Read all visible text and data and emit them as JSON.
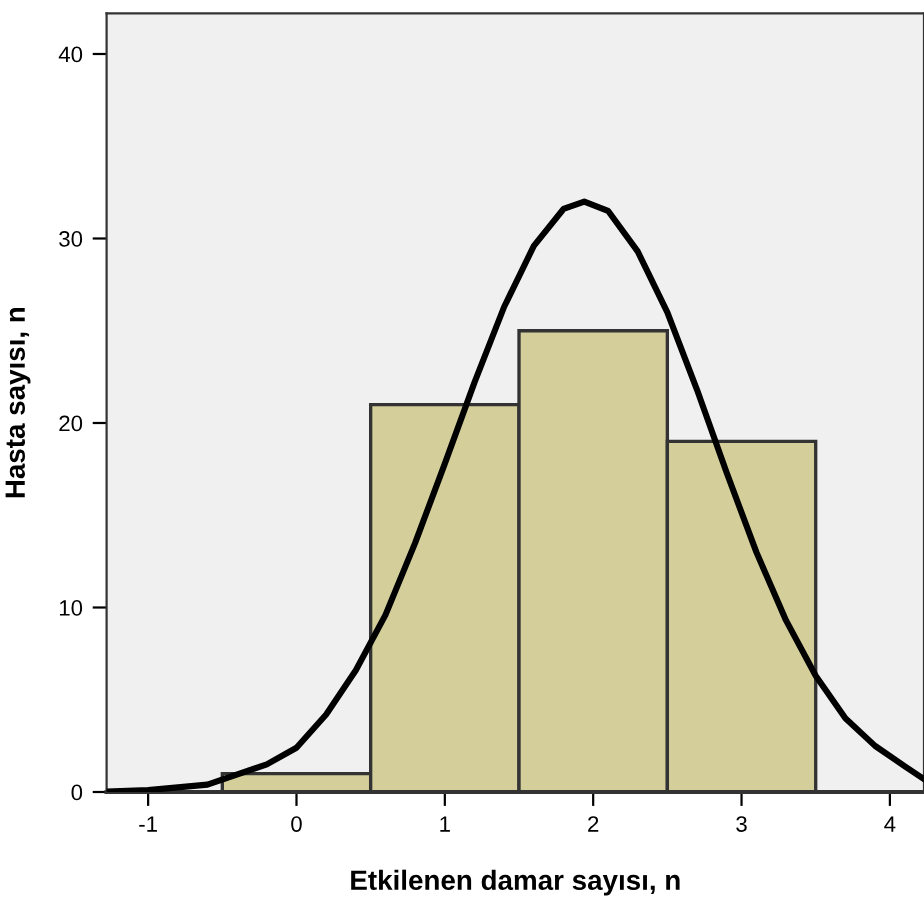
{
  "chart_data": {
    "type": "histogram",
    "xlabel": "Etkilenen damar sayısı, n",
    "ylabel": "Hasta sayısı, n",
    "bins": [
      -0.5,
      0.5,
      1.5,
      2.5,
      3.5
    ],
    "values": [
      1,
      21,
      25,
      19
    ],
    "color": "#d3ce9a",
    "series": [
      {
        "type": "line",
        "color": "#000000",
        "x": [
          -1.28,
          -1.0,
          -0.6,
          -0.2,
          0,
          0.2,
          0.4,
          0.6,
          0.8,
          1.0,
          1.2,
          1.4,
          1.6,
          1.8,
          1.94,
          2.1,
          2.3,
          2.5,
          2.7,
          2.9,
          3.1,
          3.3,
          3.5,
          3.7,
          3.9,
          4.1,
          4.23
        ],
        "values": [
          0.03,
          0.1,
          0.4,
          1.5,
          2.4,
          4.2,
          6.6,
          9.6,
          13.5,
          17.8,
          22.2,
          26.3,
          29.6,
          31.6,
          32,
          31.5,
          29.3,
          26.0,
          21.8,
          17.3,
          13.0,
          9.3,
          6.3,
          4.0,
          2.5,
          1.4,
          0.7
        ]
      }
    ],
    "xlim": [
      -1.28,
      4.23
    ],
    "ylim": [
      0,
      42.2
    ],
    "xticks": [
      -1,
      0,
      1,
      2,
      3,
      4
    ],
    "yticks": [
      0,
      10,
      20,
      30,
      40
    ],
    "grid": false,
    "legend": false
  }
}
